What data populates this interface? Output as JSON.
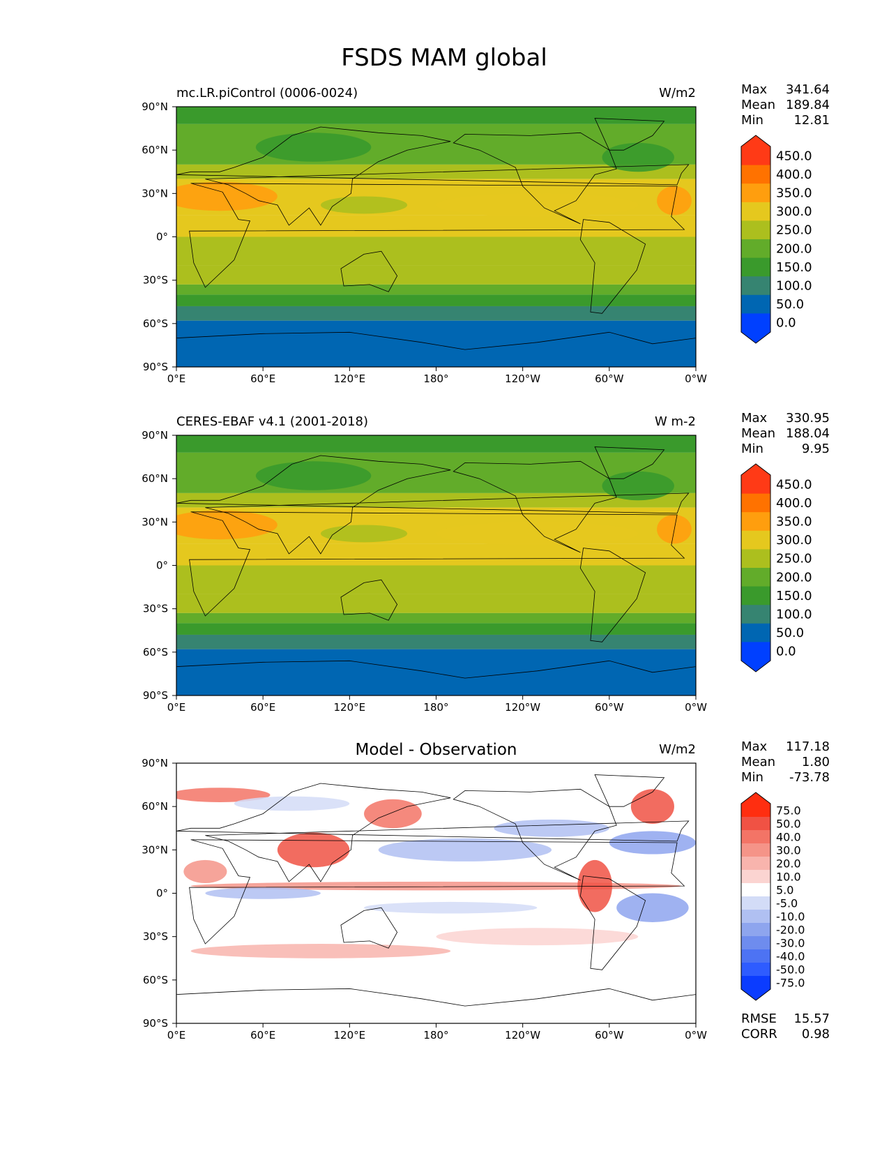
{
  "figure_title": "FSDS MAM global",
  "colors": {
    "abs_levels": [
      "#0040ff",
      "#0066b2",
      "#368471",
      "#3a9a2c",
      "#62ac2a",
      "#acbf1e",
      "#e5c81e",
      "#ff9e0e",
      "#ff7200",
      "#ff3a16"
    ],
    "diff_levels": [
      "#0b3cff",
      "#2e5cff",
      "#4d73f3",
      "#6e8cee",
      "#8ea5ee",
      "#b0c0f2",
      "#d3dcf7",
      "#ffffff",
      "#fbd4d1",
      "#f8b4ad",
      "#f59488",
      "#f37466",
      "#f05244",
      "#ff2e10"
    ],
    "land_outline": "#000000"
  },
  "chart_data": [
    {
      "type": "heatmap",
      "panel": "test",
      "title": "mc.LR.piControl (0006-0024)",
      "units": "W/m2",
      "stats": {
        "labels": [
          "Max",
          "Mean",
          "Min"
        ],
        "values": [
          "341.64",
          "189.84",
          "12.81"
        ]
      },
      "colorbar_ticks": [
        "450.0",
        "400.0",
        "350.0",
        "300.0",
        "250.0",
        "200.0",
        "150.0",
        "100.0",
        "50.0",
        "0.0"
      ],
      "x_ticks": [
        "0°E",
        "60°E",
        "120°E",
        "180°",
        "120°W",
        "60°W",
        "0°W"
      ],
      "y_ticks": [
        "90°N",
        "60°N",
        "30°N",
        "0°",
        "30°S",
        "60°S",
        "90°S"
      ],
      "xlim": [
        0,
        360
      ],
      "ylim": [
        -90,
        90
      ]
    },
    {
      "type": "heatmap",
      "panel": "ref",
      "title": "CERES-EBAF v4.1 (2001-2018)",
      "units": "W m-2",
      "stats": {
        "labels": [
          "Max",
          "Mean",
          "Min"
        ],
        "values": [
          "330.95",
          "188.04",
          "9.95"
        ]
      },
      "colorbar_ticks": [
        "450.0",
        "400.0",
        "350.0",
        "300.0",
        "250.0",
        "200.0",
        "150.0",
        "100.0",
        "50.0",
        "0.0"
      ],
      "x_ticks": [
        "0°E",
        "60°E",
        "120°E",
        "180°",
        "120°W",
        "60°W",
        "0°W"
      ],
      "y_ticks": [
        "90°N",
        "60°N",
        "30°N",
        "0°",
        "30°S",
        "60°S",
        "90°S"
      ],
      "xlim": [
        0,
        360
      ],
      "ylim": [
        -90,
        90
      ]
    },
    {
      "type": "heatmap",
      "panel": "diff",
      "title": "Model - Observation",
      "units": "W/m2",
      "stats": {
        "labels": [
          "Max",
          "Mean",
          "Min"
        ],
        "values": [
          "117.18",
          "1.80",
          "-73.78"
        ]
      },
      "colorbar_ticks": [
        "75.0",
        "50.0",
        "40.0",
        "30.0",
        "20.0",
        "10.0",
        "5.0",
        "-5.0",
        "-10.0",
        "-20.0",
        "-30.0",
        "-40.0",
        "-50.0",
        "-75.0"
      ],
      "x_ticks": [
        "0°E",
        "60°E",
        "120°E",
        "180°",
        "120°W",
        "60°W",
        "0°W"
      ],
      "y_ticks": [
        "90°N",
        "60°N",
        "30°N",
        "0°",
        "30°S",
        "60°S",
        "90°S"
      ],
      "xlim": [
        0,
        360
      ],
      "ylim": [
        -90,
        90
      ],
      "metrics": {
        "labels": [
          "RMSE",
          "CORR"
        ],
        "values": [
          "15.57",
          "0.98"
        ]
      }
    }
  ]
}
